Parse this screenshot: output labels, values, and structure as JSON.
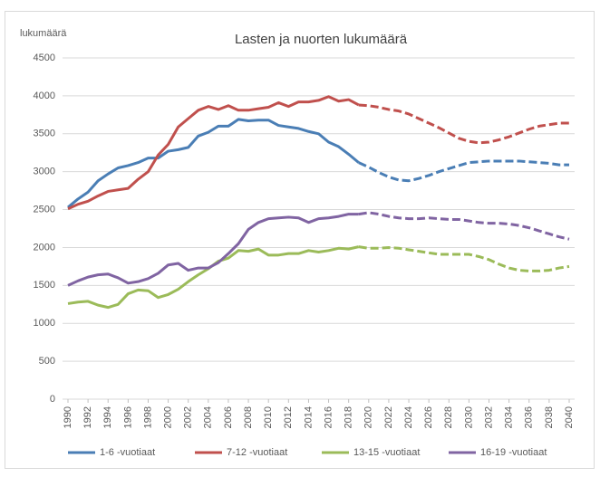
{
  "chart_data": {
    "type": "line",
    "title": "Lasten ja nuorten lukumäärä",
    "y_label": "lukumäärä",
    "x": [
      1990,
      1991,
      1992,
      1993,
      1994,
      1995,
      1996,
      1997,
      1998,
      1999,
      2000,
      2001,
      2002,
      2003,
      2004,
      2005,
      2006,
      2007,
      2008,
      2009,
      2010,
      2011,
      2012,
      2013,
      2014,
      2015,
      2016,
      2017,
      2018,
      2019,
      2020,
      2021,
      2022,
      2023,
      2024,
      2025,
      2026,
      2027,
      2028,
      2029,
      2030,
      2031,
      2032,
      2033,
      2034,
      2035,
      2036,
      2037,
      2038,
      2039,
      2040
    ],
    "series": [
      {
        "name": "1-6 -vuotiaat",
        "color": "#4a7eb5",
        "values": [
          2530,
          2640,
          2730,
          2880,
          2970,
          3050,
          3080,
          3120,
          3180,
          3180,
          3270,
          3290,
          3320,
          3470,
          3520,
          3600,
          3600,
          3690,
          3670,
          3680,
          3680,
          3610,
          3590,
          3570,
          3530,
          3500,
          3390,
          3330,
          3230,
          3120,
          3060,
          2990,
          2930,
          2890,
          2880,
          2910,
          2950,
          3000,
          3040,
          3080,
          3120,
          3130,
          3140,
          3140,
          3140,
          3140,
          3130,
          3120,
          3110,
          3090,
          3090
        ]
      },
      {
        "name": "7-12 -vuotiaat",
        "color": "#c0504d",
        "values": [
          2510,
          2570,
          2610,
          2680,
          2740,
          2760,
          2780,
          2900,
          3000,
          3220,
          3360,
          3590,
          3700,
          3810,
          3860,
          3820,
          3870,
          3810,
          3810,
          3830,
          3850,
          3910,
          3860,
          3920,
          3920,
          3940,
          3990,
          3930,
          3950,
          3880,
          3870,
          3850,
          3820,
          3800,
          3760,
          3700,
          3640,
          3580,
          3510,
          3440,
          3400,
          3380,
          3390,
          3420,
          3460,
          3510,
          3560,
          3600,
          3620,
          3640,
          3640
        ]
      },
      {
        "name": "13-15 -vuotiaat",
        "color": "#9bbb59",
        "values": [
          1260,
          1280,
          1290,
          1240,
          1210,
          1250,
          1390,
          1440,
          1430,
          1340,
          1380,
          1450,
          1550,
          1640,
          1720,
          1820,
          1860,
          1960,
          1950,
          1980,
          1900,
          1900,
          1920,
          1920,
          1960,
          1940,
          1960,
          1990,
          1980,
          2010,
          1990,
          1990,
          2000,
          1990,
          1970,
          1950,
          1930,
          1910,
          1910,
          1910,
          1910,
          1880,
          1840,
          1780,
          1730,
          1700,
          1690,
          1690,
          1700,
          1730,
          1750
        ]
      },
      {
        "name": "16-19 -vuotiaat",
        "color": "#8064a2",
        "values": [
          1500,
          1560,
          1610,
          1640,
          1650,
          1600,
          1530,
          1550,
          1590,
          1660,
          1770,
          1790,
          1700,
          1730,
          1730,
          1800,
          1920,
          2050,
          2240,
          2330,
          2380,
          2390,
          2400,
          2390,
          2330,
          2380,
          2390,
          2410,
          2440,
          2440,
          2460,
          2440,
          2410,
          2390,
          2380,
          2380,
          2390,
          2380,
          2370,
          2370,
          2350,
          2330,
          2320,
          2320,
          2310,
          2290,
          2260,
          2220,
          2180,
          2140,
          2110
        ]
      }
    ],
    "dashed_from": 2019,
    "xlim": [
      1990,
      2040
    ],
    "xticks": [
      1990,
      1992,
      1994,
      1996,
      1998,
      2000,
      2002,
      2004,
      2006,
      2008,
      2010,
      2012,
      2014,
      2016,
      2018,
      2020,
      2022,
      2024,
      2026,
      2028,
      2030,
      2032,
      2034,
      2036,
      2038,
      2040
    ],
    "ylim": [
      0,
      4500
    ],
    "yticks": [
      0,
      500,
      1000,
      1500,
      2000,
      2500,
      3000,
      3500,
      4000,
      4500
    ],
    "grid": true,
    "legend": "bottom"
  }
}
